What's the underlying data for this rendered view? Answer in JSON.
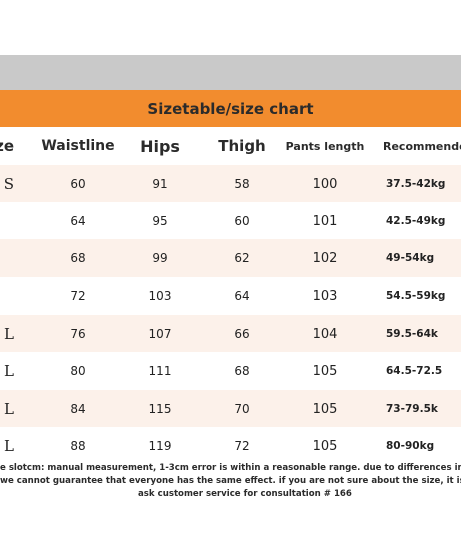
{
  "title": "Sizetable/size chart",
  "headers": {
    "size": "ze",
    "waistline": "Waistline",
    "hips": "Hips",
    "thigh": "Thigh",
    "pants_length": "Pants length",
    "recommended": "Recommended w"
  },
  "rows": [
    {
      "size": "S",
      "waistline": "60",
      "hips": "91",
      "thigh": "58",
      "pants_length": "100",
      "recommended": "37.5-42kg"
    },
    {
      "size": "",
      "waistline": "64",
      "hips": "95",
      "thigh": "60",
      "pants_length": "101",
      "recommended": "42.5-49kg"
    },
    {
      "size": "",
      "waistline": "68",
      "hips": "99",
      "thigh": "62",
      "pants_length": "102",
      "recommended": "49-54kg"
    },
    {
      "size": "",
      "waistline": "72",
      "hips": "103",
      "thigh": "64",
      "pants_length": "103",
      "recommended": "54.5-59kg"
    },
    {
      "size": "L",
      "waistline": "76",
      "hips": "107",
      "thigh": "66",
      "pants_length": "104",
      "recommended": "59.5-64k"
    },
    {
      "size": "L",
      "waistline": "80",
      "hips": "111",
      "thigh": "68",
      "pants_length": "105",
      "recommended": "64.5-72.5"
    },
    {
      "size": "L",
      "waistline": "84",
      "hips": "115",
      "thigh": "70",
      "pants_length": "105",
      "recommended": "73-79.5k"
    },
    {
      "size": "L",
      "waistline": "88",
      "hips": "119",
      "thigh": "72",
      "pants_length": "105",
      "recommended": "80-90kg"
    }
  ],
  "footnote": {
    "line1": "e slotcm: manual measurement, 1-3cm error is within a reasonable range. due to differences in individual",
    "line2": "we cannot guarantee that everyone has the same effect. if you are not sure about the size, it is recommen",
    "line3": "ask customer service for consultation # 166"
  },
  "colors": {
    "title_bar": "#f28c2e",
    "top_band": "#c9c9c9",
    "row_tint": "#fcf1ea",
    "text": "#222222"
  }
}
